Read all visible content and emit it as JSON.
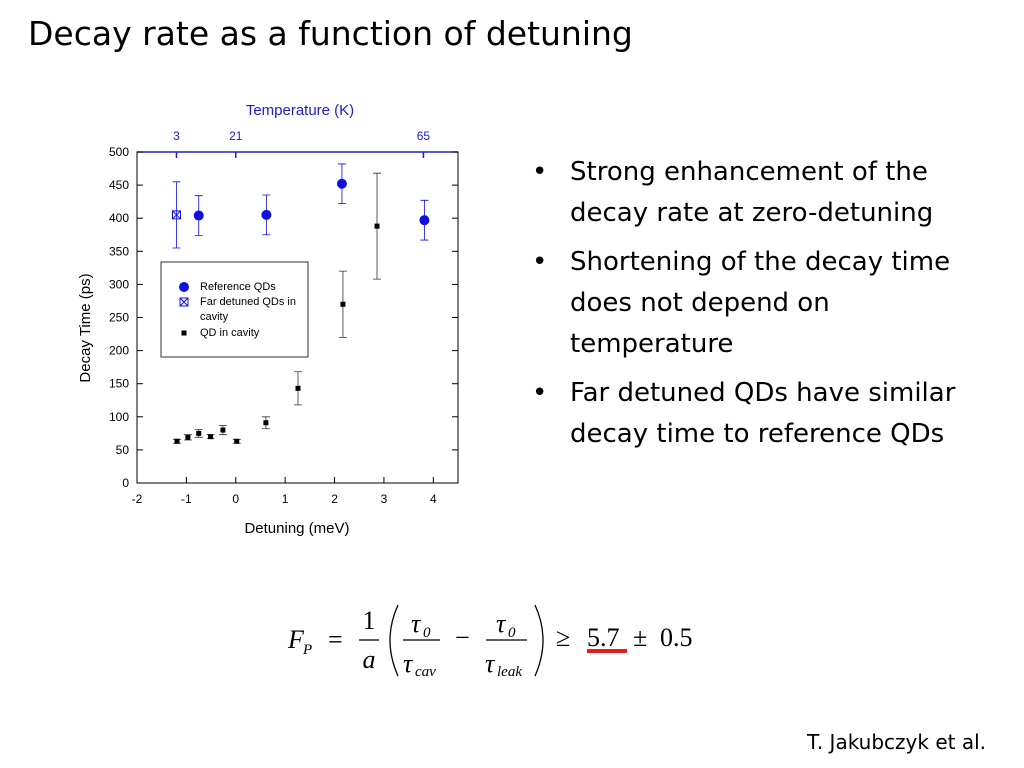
{
  "slide": {
    "title": "Decay rate as a function of detuning",
    "bullets": [
      "Strong enhancement of the decay rate at zero-detuning",
      "Shortening of the decay time does not depend on temperature",
      "Far detuned QDs have similar decay time to reference QDs"
    ],
    "citation": "T. Jakubczyk et al."
  },
  "formula": {
    "lhs": "F",
    "lhs_sub": "P",
    "equals": "=",
    "numerator": "1",
    "denominator": "a",
    "tau": "τ",
    "tau_sub0": "0",
    "cav": "cav",
    "minus": "−",
    "leak": "leak",
    "geq": "≥",
    "value": "5.7",
    "pm": "±",
    "error": "0.5"
  },
  "chart_data": {
    "type": "scatter",
    "xlabel": "Detuning (meV)",
    "ylabel": "Decay Time (ps)",
    "x2label": "Temperature (K)",
    "xlim": [
      -2,
      4.5
    ],
    "ylim": [
      0,
      500
    ],
    "xticks": [
      -2,
      -1,
      0,
      1,
      2,
      3,
      4
    ],
    "yticks": [
      0,
      50,
      100,
      150,
      200,
      250,
      300,
      350,
      400,
      450,
      500
    ],
    "x2ticks": [
      {
        "value": -1.2,
        "label": "3"
      },
      {
        "value": 0,
        "label": "21"
      },
      {
        "value": 3.8,
        "label": "65"
      }
    ],
    "x2color": "#2020c0",
    "series": [
      {
        "name": "Reference QDs",
        "color": "#1010e0",
        "marker": "circle",
        "x": [
          -0.75,
          0.62,
          2.15,
          3.82
        ],
        "values": [
          404,
          405,
          452,
          397
        ],
        "errors": [
          30,
          30,
          30,
          30
        ]
      },
      {
        "name": "Far detuned QDs in cavity",
        "color": "#1010e0",
        "marker": "crossed-square",
        "x": [
          -1.2
        ],
        "values": [
          405
        ],
        "errors": [
          50
        ]
      },
      {
        "name": "QD in cavity",
        "color": "#000000",
        "marker": "square",
        "x": [
          -1.19,
          -0.97,
          -0.75,
          -0.51,
          -0.26,
          0.02,
          0.61,
          1.26,
          2.17,
          2.86
        ],
        "values": [
          63,
          69,
          75,
          70,
          80,
          63,
          91,
          143,
          270,
          388
        ],
        "errors": [
          3,
          4,
          6,
          3,
          7,
          3,
          9,
          25,
          50,
          80
        ]
      }
    ]
  }
}
